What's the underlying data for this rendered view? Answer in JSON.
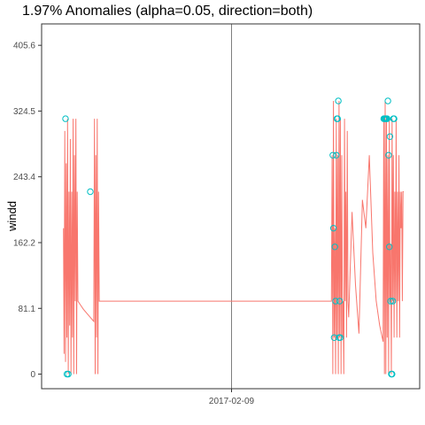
{
  "chart_data": {
    "type": "line",
    "title": "1.97% Anomalies (alpha=0.05, direction=both)",
    "xlabel": "",
    "ylabel": "windd",
    "ylim": [
      -18,
      432
    ],
    "y_ticks": [
      0,
      81.1,
      162.2,
      243.4,
      324.5,
      405.6
    ],
    "y_tick_labels": [
      "0",
      "81.1",
      "162.2",
      "243.4",
      "324.5",
      "405.6"
    ],
    "x_tick_labels": [
      "2017-02-09"
    ],
    "xlim": [
      0,
      100
    ],
    "x_ticks": [
      50
    ],
    "vline_x": 50,
    "grid": false,
    "legend": "none",
    "colors": {
      "line": "#f8766d",
      "anomaly": "#00bfc4",
      "axis": "#333333",
      "vline": "#7f7f7f"
    },
    "series": [
      {
        "values": [
          [
            1.2,
            180
          ],
          [
            1.4,
            25
          ],
          [
            1.6,
            300
          ],
          [
            1.8,
            15
          ],
          [
            2.0,
            260
          ],
          [
            2.2,
            45
          ],
          [
            2.4,
            315
          ],
          [
            2.6,
            0
          ],
          [
            2.8,
            225
          ],
          [
            3.0,
            60
          ],
          [
            3.2,
            290
          ],
          [
            3.4,
            0
          ],
          [
            3.6,
            225
          ],
          [
            3.8,
            45
          ],
          [
            4.0,
            315
          ],
          [
            4.2,
            0
          ],
          [
            4.4,
            270
          ],
          [
            4.6,
            90
          ],
          [
            4.8,
            315
          ],
          [
            5.0,
            0
          ],
          [
            5.2,
            225
          ],
          [
            5.4,
            90
          ],
          [
            7,
            80
          ],
          [
            9,
            70
          ],
          [
            10,
            65
          ],
          [
            10.2,
            315
          ],
          [
            10.4,
            0
          ],
          [
            10.6,
            270
          ],
          [
            10.8,
            45
          ],
          [
            11.0,
            315
          ],
          [
            11.2,
            0
          ],
          [
            11.4,
            225
          ],
          [
            11.6,
            90
          ],
          [
            11.6,
            90
          ],
          [
            50,
            90
          ],
          [
            79,
            90
          ],
          [
            79.2,
            270
          ],
          [
            79.4,
            0
          ],
          [
            79.6,
            337
          ],
          [
            79.8,
            45
          ],
          [
            80.0,
            180
          ],
          [
            80.2,
            0
          ],
          [
            80.4,
            315
          ],
          [
            80.6,
            45
          ],
          [
            80.8,
            270
          ],
          [
            81.0,
            0
          ],
          [
            81.2,
            337
          ],
          [
            81.4,
            45
          ],
          [
            81.6,
            315
          ],
          [
            81.8,
            0
          ],
          [
            82.0,
            270
          ],
          [
            82.2,
            45
          ],
          [
            82.4,
            90
          ],
          [
            82.6,
            0
          ],
          [
            82.8,
            315
          ],
          [
            83.0,
            90
          ],
          [
            83.2,
            225
          ],
          [
            83.4,
            45
          ],
          [
            83.6,
            300
          ],
          [
            83.8,
            90
          ],
          [
            84,
            70
          ],
          [
            85,
            200
          ],
          [
            86,
            110
          ],
          [
            87,
            50
          ],
          [
            88,
            215
          ],
          [
            89,
            180
          ],
          [
            90,
            270
          ],
          [
            91,
            150
          ],
          [
            92,
            90
          ],
          [
            93,
            60
          ],
          [
            94,
            40
          ],
          [
            94.2,
            315
          ],
          [
            94.4,
            0
          ],
          [
            94.6,
            337
          ],
          [
            94.8,
            0
          ],
          [
            95.0,
            315
          ],
          [
            95.2,
            45
          ],
          [
            95.4,
            270
          ],
          [
            95.6,
            0
          ],
          [
            95.8,
            315
          ],
          [
            96.0,
            90
          ],
          [
            96.2,
            160
          ],
          [
            96.4,
            0
          ],
          [
            96.6,
            315
          ],
          [
            96.8,
            90
          ],
          [
            97.0,
            270
          ],
          [
            97.2,
            45
          ],
          [
            97.4,
            225
          ],
          [
            97.6,
            90
          ],
          [
            97.8,
            315
          ],
          [
            98.0,
            45
          ],
          [
            98.2,
            225
          ],
          [
            98.4,
            90
          ],
          [
            98.6,
            270
          ],
          [
            98.8,
            45
          ],
          [
            99.0,
            225
          ],
          [
            99.2,
            180
          ],
          [
            99.4,
            225
          ],
          [
            99.6,
            90
          ],
          [
            99.8,
            225
          ],
          [
            100,
            225
          ]
        ]
      }
    ],
    "anomalies": [
      [
        1.8,
        315
      ],
      [
        2.2,
        0
      ],
      [
        2.6,
        0
      ],
      [
        9,
        225
      ],
      [
        79.4,
        270
      ],
      [
        79.6,
        180
      ],
      [
        79.8,
        45
      ],
      [
        80.0,
        157
      ],
      [
        80.2,
        90
      ],
      [
        80.4,
        270
      ],
      [
        80.6,
        315
      ],
      [
        80.8,
        315
      ],
      [
        81.0,
        337
      ],
      [
        81.2,
        45
      ],
      [
        81.4,
        90
      ],
      [
        81.6,
        45
      ],
      [
        94.2,
        315
      ],
      [
        94.4,
        315
      ],
      [
        94.6,
        315
      ],
      [
        94.8,
        315
      ],
      [
        95.0,
        315
      ],
      [
        95.2,
        315
      ],
      [
        95.4,
        337
      ],
      [
        95.6,
        270
      ],
      [
        95.8,
        157
      ],
      [
        96.0,
        293
      ],
      [
        96.2,
        90
      ],
      [
        96.4,
        0
      ],
      [
        96.6,
        0
      ],
      [
        96.8,
        90
      ],
      [
        97.0,
        315
      ],
      [
        97.2,
        315
      ]
    ]
  }
}
